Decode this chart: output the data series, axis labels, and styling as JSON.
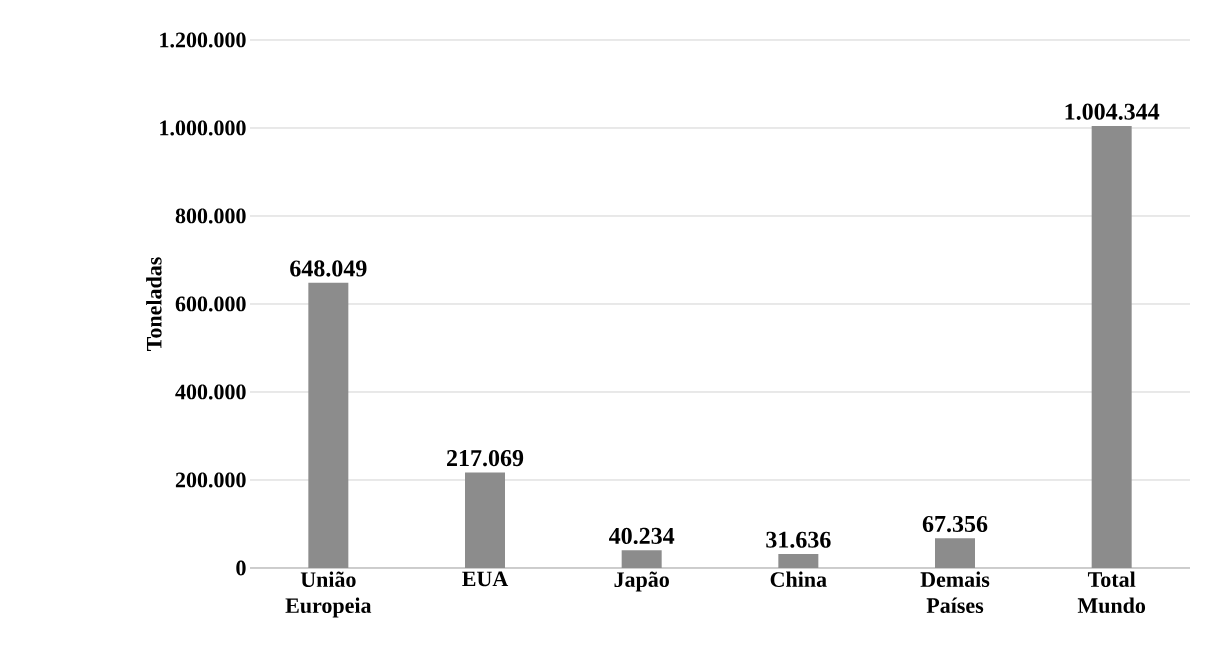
{
  "chart_data": {
    "type": "bar",
    "ylabel": "Toneladas",
    "categories": [
      "União Europeia",
      "EUA",
      "Japão",
      "China",
      "Demais Países",
      "Total Mundo"
    ],
    "values": [
      648049,
      217069,
      40234,
      31636,
      67356,
      1004344
    ],
    "value_labels": [
      "648.049",
      "217.069",
      "40.234",
      "31.636",
      "67.356",
      "1.004.344"
    ],
    "color": "#8c8c8c",
    "ylim": [
      0,
      1200000
    ],
    "yticks": [
      {
        "value": 0,
        "label": "0"
      },
      {
        "value": 200000,
        "label": "200.000"
      },
      {
        "value": 400000,
        "label": "400.000"
      },
      {
        "value": 600000,
        "label": "600.000"
      },
      {
        "value": 800000,
        "label": "800.000"
      },
      {
        "value": 1000000,
        "label": "1.000.000"
      },
      {
        "value": 1200000,
        "label": "1.200.000"
      }
    ],
    "grid": "y"
  }
}
